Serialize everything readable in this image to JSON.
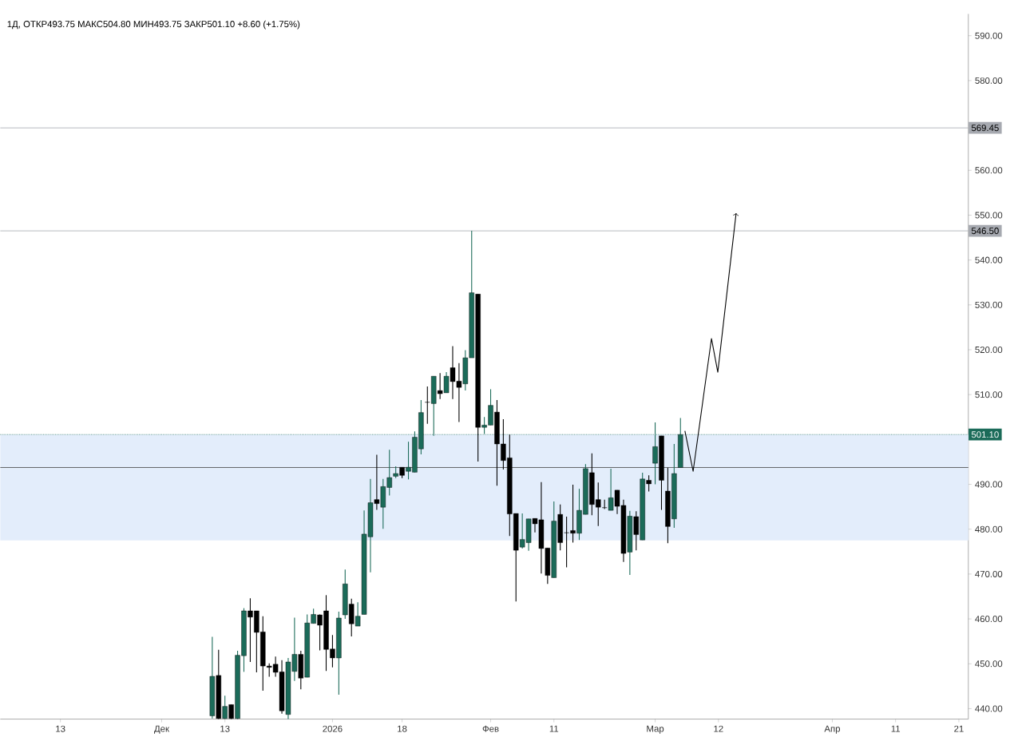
{
  "chart_data": {
    "type": "candlestick",
    "title": "1Д, ОТКР493.75  МАКС504.80  МИН493.75  ЗАКР501.10  +8.60 (+1.75%)",
    "categories": [
      null,
      null,
      null,
      null,
      null,
      null,
      null,
      null,
      null,
      "13",
      null,
      null,
      null,
      null,
      null,
      null,
      null,
      null,
      null,
      null,
      null,
      null,
      null,
      null,
      null,
      "Дек",
      null,
      null,
      null,
      null,
      null,
      null,
      null,
      null,
      null,
      "13",
      null,
      null,
      null,
      null,
      null,
      null,
      null,
      null,
      null,
      null,
      null,
      null,
      null,
      null,
      null,
      null,
      "2026",
      null,
      null,
      null,
      null,
      null,
      null,
      null,
      null,
      null,
      null,
      "18",
      null,
      null,
      null,
      null,
      null,
      null,
      null,
      null,
      null,
      null,
      null,
      null,
      null,
      "Фев",
      null,
      null,
      null,
      null,
      null,
      null,
      null,
      null,
      null,
      "11",
      null,
      null,
      null,
      null,
      null,
      null,
      null,
      null,
      null,
      null,
      null,
      null,
      null,
      null,
      null,
      "Мар",
      null,
      null,
      null,
      null,
      null,
      null,
      null,
      null,
      null,
      "12",
      null,
      null,
      null,
      null,
      null,
      null,
      null,
      null,
      null,
      null,
      null,
      null,
      null,
      null,
      null,
      null,
      null,
      "Апр",
      null,
      null,
      null,
      null,
      null,
      null,
      null,
      null,
      null,
      "11",
      null,
      null,
      null,
      null,
      null,
      null,
      null,
      null,
      null,
      "21",
      null
    ],
    "ohlc": [
      null,
      null,
      null,
      null,
      null,
      null,
      null,
      null,
      null,
      null,
      null,
      null,
      null,
      null,
      null,
      null,
      null,
      null,
      null,
      null,
      null,
      null,
      null,
      null,
      null,
      null,
      null,
      null,
      null,
      null,
      null,
      null,
      null,
      [
        438.4,
        456.0,
        437.8,
        447.2
      ],
      [
        447.4,
        453.1,
        437.7,
        437.8
      ],
      [
        437.8,
        442.9,
        437.7,
        440.5
      ],
      [
        440.9,
        440.9,
        437.7,
        437.8
      ],
      [
        437.8,
        452.9,
        437.7,
        451.9
      ],
      [
        451.8,
        462.4,
        448.2,
        461.8
      ],
      [
        461.8,
        464.6,
        450.4,
        460.4
      ],
      [
        461.8,
        461.8,
        448.1,
        457.0
      ],
      [
        457.1,
        460.6,
        444.0,
        449.5
      ],
      [
        449.5,
        450.1,
        447.1,
        449.2
      ],
      [
        449.9,
        451.6,
        447.1,
        448.1
      ],
      [
        448.2,
        450.8,
        438.9,
        439.5
      ],
      [
        438.7,
        451.3,
        437.7,
        450.4
      ],
      [
        448.3,
        460.3,
        446.2,
        452.1
      ],
      [
        452.1,
        452.9,
        444.3,
        446.8
      ],
      [
        447.0,
        461.0,
        447.0,
        459.1
      ],
      [
        459.0,
        462.3,
        459.0,
        461.0
      ],
      [
        460.9,
        461.0,
        453.0,
        458.6
      ],
      [
        461.8,
        465.3,
        448.4,
        453.2
      ],
      [
        453.3,
        456.4,
        449.2,
        451.3
      ],
      [
        451.3,
        461.6,
        443.1,
        460.2
      ],
      [
        460.9,
        471.0,
        460.0,
        467.8
      ],
      [
        463.3,
        464.5,
        456.1,
        458.9
      ],
      [
        458.4,
        463.7,
        458.4,
        460.6
      ],
      [
        461.0,
        484.2,
        461.0,
        478.9
      ],
      [
        478.3,
        491.2,
        470.4,
        485.9
      ],
      [
        486.6,
        496.6,
        484.3,
        485.7
      ],
      [
        484.9,
        491.2,
        480.1,
        489.5
      ],
      [
        489.3,
        497.7,
        487.5,
        491.5
      ],
      [
        491.8,
        494.0,
        491.4,
        492.4
      ],
      [
        493.8,
        493.8,
        491.4,
        492.0
      ],
      [
        492.9,
        499.5,
        491.1,
        493.8
      ],
      [
        492.7,
        501.8,
        492.7,
        500.5
      ],
      [
        497.9,
        508.8,
        496.7,
        506.0
      ],
      [
        508.3,
        511.8,
        503.5,
        508.3
      ],
      [
        508.0,
        514.1,
        500.8,
        514.1
      ],
      [
        510.9,
        514.8,
        509.0,
        510.2
      ],
      [
        510.4,
        515.0,
        510.4,
        514.1
      ],
      [
        516.0,
        520.8,
        509.0,
        512.9
      ],
      [
        513.0,
        517.0,
        503.9,
        511.6
      ],
      [
        512.4,
        519.9,
        510.9,
        518.2
      ],
      [
        518.2,
        546.5,
        518.2,
        532.7
      ],
      [
        532.4,
        532.4,
        495.1,
        502.7
      ],
      [
        502.7,
        505.0,
        501.2,
        503.2
      ],
      [
        503.2,
        511.2,
        503.2,
        507.6
      ],
      [
        506.1,
        508.8,
        489.7,
        499.0
      ],
      [
        499.0,
        504.5,
        493.3,
        495.3
      ],
      [
        495.9,
        501.1,
        478.5,
        483.4
      ],
      [
        483.5,
        483.5,
        463.9,
        475.3
      ],
      [
        476.0,
        483.5,
        475.7,
        477.7
      ],
      [
        477.0,
        482.3,
        475.2,
        482.3
      ],
      [
        482.4,
        482.4,
        479.3,
        481.2
      ],
      [
        482.1,
        490.5,
        470.1,
        475.7
      ],
      [
        475.8,
        475.8,
        467.8,
        469.7
      ],
      [
        469.2,
        486.2,
        469.2,
        481.8
      ],
      [
        483.3,
        485.5,
        475.3,
        477.0
      ],
      [
        479.2,
        482.8,
        471.5,
        479.2
      ],
      [
        479.7,
        489.9,
        477.0,
        479.1
      ],
      [
        479.1,
        489.0,
        477.6,
        484.2
      ],
      [
        483.3,
        494.5,
        483.3,
        493.5
      ],
      [
        492.6,
        496.9,
        483.1,
        485.5
      ],
      [
        486.6,
        490.4,
        480.7,
        484.9
      ],
      [
        484.8,
        486.6,
        484.5,
        484.8
      ],
      [
        484.2,
        493.5,
        484.2,
        487.0
      ],
      [
        488.7,
        488.7,
        483.4,
        485.1
      ],
      [
        485.3,
        486.6,
        472.7,
        474.6
      ],
      [
        474.9,
        484.1,
        469.8,
        482.9
      ],
      [
        482.8,
        484.0,
        475.3,
        478.8
      ],
      [
        477.6,
        492.6,
        477.6,
        491.2
      ],
      [
        490.9,
        492.0,
        488.4,
        490.1
      ],
      [
        494.7,
        503.8,
        490.0,
        498.4
      ],
      [
        500.8,
        500.8,
        484.3,
        490.9
      ],
      [
        488.5,
        493.7,
        476.9,
        480.6
      ],
      [
        482.3,
        499.0,
        480.3,
        492.4
      ],
      [
        493.75,
        504.8,
        493.75,
        501.1
      ],
      null,
      null,
      null,
      null,
      null,
      null,
      null,
      null,
      null,
      null,
      null,
      null,
      null,
      null,
      null,
      null,
      null,
      null,
      null,
      null,
      null,
      null,
      null,
      null,
      null,
      null,
      null,
      null,
      null,
      null,
      null,
      null,
      null,
      null,
      null,
      null,
      null,
      null,
      null,
      null,
      null,
      null,
      null,
      null,
      null
    ],
    "colors": [
      null,
      null,
      null,
      null,
      null,
      null,
      null,
      null,
      null,
      null,
      null,
      null,
      null,
      null,
      null,
      null,
      null,
      null,
      null,
      null,
      null,
      null,
      null,
      null,
      null,
      null,
      null,
      null,
      null,
      null,
      null,
      null,
      null,
      "#1b6b59",
      "#000000",
      "#1b6b59",
      "#000000",
      "#1b6b59",
      "#1b6b59",
      "#000000",
      "#000000",
      "#000000",
      "#000000",
      "#000000",
      "#000000",
      "#1b6b59",
      "#1b6b59",
      "#000000",
      "#1b6b59",
      "#1b6b59",
      "#000000",
      "#000000",
      "#000000",
      "#1b6b59",
      "#1b6b59",
      "#000000",
      "#1b6b59",
      "#1b6b59",
      "#1b6b59",
      "#000000",
      "#1b6b59",
      "#1b6b59",
      "#1b6b59",
      "#000000",
      "#1b6b59",
      "#1b6b59",
      "#1b6b59",
      "#000000",
      "#1b6b59",
      "#000000",
      "#1b6b59",
      "#000000",
      "#000000",
      "#1b6b59",
      "#1b6b59",
      "#000000",
      "#1b6b59",
      "#1b6b59",
      "#000000",
      "#000000",
      "#000000",
      "#000000",
      "#1b6b59",
      "#1b6b59",
      "#000000",
      "#000000",
      "#000000",
      "#1b6b59",
      "#000000",
      "#000000",
      "#000000",
      "#1b6b59",
      "#1b6b59",
      "#000000",
      "#000000",
      "#000000",
      "#1b6b59",
      "#000000",
      "#000000",
      "#1b6b59",
      "#000000",
      "#1b6b59",
      "#000000",
      "#1b6b59",
      "#000000",
      "#000000",
      "#1b6b59",
      "#1b6b59",
      null,
      null,
      null,
      null,
      null,
      null,
      null,
      null,
      null,
      null,
      null,
      null,
      null,
      null,
      null,
      null,
      null,
      null,
      null,
      null,
      null,
      null,
      null,
      null,
      null,
      null,
      null,
      null,
      null,
      null,
      null,
      null,
      null,
      null,
      null,
      null,
      null,
      null,
      null,
      null,
      null,
      null,
      null,
      null,
      null
    ],
    "ylim": [
      437.67,
      594.85
    ],
    "yticks": [
      {
        "value": 440,
        "label": "440.00"
      },
      {
        "value": 450,
        "label": "450.00"
      },
      {
        "value": 460,
        "label": "460.00"
      },
      {
        "value": 470,
        "label": "470.00"
      },
      {
        "value": 480,
        "label": "480.00"
      },
      {
        "value": 490,
        "label": "490.00"
      },
      {
        "value": 500,
        "label": null
      },
      {
        "value": 510,
        "label": "510.00"
      },
      {
        "value": 520,
        "label": "520.00"
      },
      {
        "value": 530,
        "label": "530.00"
      },
      {
        "value": 540,
        "label": "540.00"
      },
      {
        "value": 550,
        "label": "550.00"
      },
      {
        "value": 560,
        "label": "560.00"
      },
      {
        "value": 570,
        "label": null
      },
      {
        "value": 580,
        "label": "580.00"
      },
      {
        "value": 590,
        "label": "590.00"
      }
    ],
    "ref_lines": [
      {
        "axis": "y",
        "value": 569.45,
        "label": "569.45",
        "color": "#a6a9b0",
        "line_style": "solid"
      },
      {
        "axis": "y",
        "value": 546.5,
        "label": "546.50",
        "color": "#a6a9b0",
        "line_style": "solid"
      },
      {
        "axis": "y",
        "value": 501.1,
        "label": "501.10",
        "color": "#1b6b59",
        "line_style": "dotted"
      },
      {
        "axis": "y",
        "value": 493.75,
        "color": "#444444",
        "line_style": "solid"
      }
    ],
    "bands": [
      {
        "axis": "y",
        "from": 477.5,
        "to": 501.1,
        "color": "#e3edfb"
      }
    ]
  }
}
